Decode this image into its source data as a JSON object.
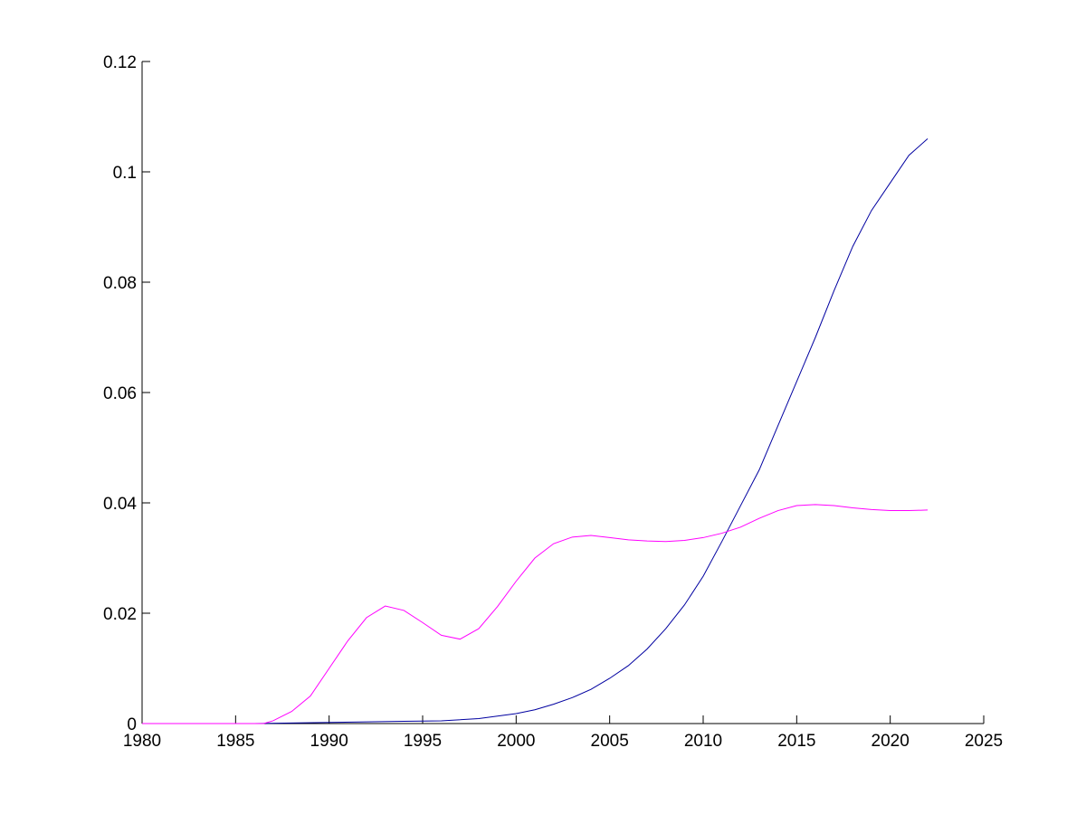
{
  "chart_data": {
    "type": "line",
    "title": "",
    "xlabel": "",
    "ylabel": "",
    "xlim": [
      1980,
      2025
    ],
    "ylim": [
      0,
      0.12
    ],
    "grid": false,
    "legend": "none",
    "x_ticks": [
      1980,
      1985,
      1990,
      1995,
      2000,
      2005,
      2010,
      2015,
      2020,
      2025
    ],
    "y_ticks": [
      0,
      0.02,
      0.04,
      0.06,
      0.08,
      0.1,
      0.12
    ],
    "x_tick_labels": [
      "1980",
      "1985",
      "1990",
      "1995",
      "2000",
      "2005",
      "2010",
      "2015",
      "2020",
      "2025"
    ],
    "y_tick_labels": [
      "0",
      "0.02",
      "0.04",
      "0.06",
      "0.08",
      "0.1",
      "0.12"
    ],
    "series": [
      {
        "color": "#0000a0",
        "x": [
          1980,
          1982,
          1984,
          1986,
          1988,
          1990,
          1992,
          1994,
          1996,
          1998,
          2000,
          2001,
          2002,
          2003,
          2004,
          2005,
          2006,
          2007,
          2008,
          2009,
          2010,
          2011,
          2012,
          2013,
          2014,
          2015,
          2016,
          2017,
          2018,
          2019,
          2020,
          2021,
          2022
        ],
        "values": [
          0,
          0,
          0,
          0,
          0.0001,
          0.0002,
          0.0003,
          0.0004,
          0.0005,
          0.0009,
          0.0018,
          0.0025,
          0.0035,
          0.0047,
          0.0062,
          0.0082,
          0.0105,
          0.0135,
          0.0172,
          0.0215,
          0.0267,
          0.033,
          0.0395,
          0.046,
          0.054,
          0.062,
          0.07,
          0.0785,
          0.0865,
          0.093,
          0.098,
          0.103,
          0.106
        ]
      },
      {
        "color": "#ff00ff",
        "x": [
          1980,
          1982,
          1984,
          1986,
          1986.5,
          1987,
          1988,
          1989,
          1990,
          1991,
          1992,
          1993,
          1994,
          1995,
          1996,
          1997,
          1998,
          1999,
          2000,
          2001,
          2002,
          2003,
          2004,
          2005,
          2006,
          2007,
          2008,
          2009,
          2010,
          2011,
          2012,
          2013,
          2014,
          2015,
          2016,
          2017,
          2018,
          2019,
          2020,
          2021,
          2022
        ],
        "values": [
          0,
          0,
          0,
          0,
          0,
          0.0005,
          0.0022,
          0.005,
          0.01,
          0.015,
          0.0192,
          0.0213,
          0.0205,
          0.0183,
          0.016,
          0.0153,
          0.0172,
          0.0212,
          0.0258,
          0.03,
          0.0326,
          0.0338,
          0.0341,
          0.0337,
          0.0333,
          0.0331,
          0.033,
          0.0332,
          0.0337,
          0.0345,
          0.0356,
          0.0372,
          0.0386,
          0.0395,
          0.0397,
          0.0395,
          0.0391,
          0.0388,
          0.0386,
          0.0386,
          0.0387
        ]
      }
    ]
  }
}
